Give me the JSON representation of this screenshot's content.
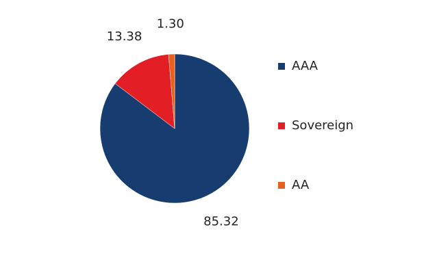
{
  "chart_data": {
    "type": "pie",
    "categories": [
      "AAA",
      "Sovereign",
      "AA"
    ],
    "values": [
      85.32,
      13.38,
      1.3
    ],
    "value_labels": [
      "85.32",
      "13.38",
      "1.30"
    ],
    "colors": [
      "#173c70",
      "#e31e24",
      "#e8601c"
    ],
    "legend": "right"
  }
}
